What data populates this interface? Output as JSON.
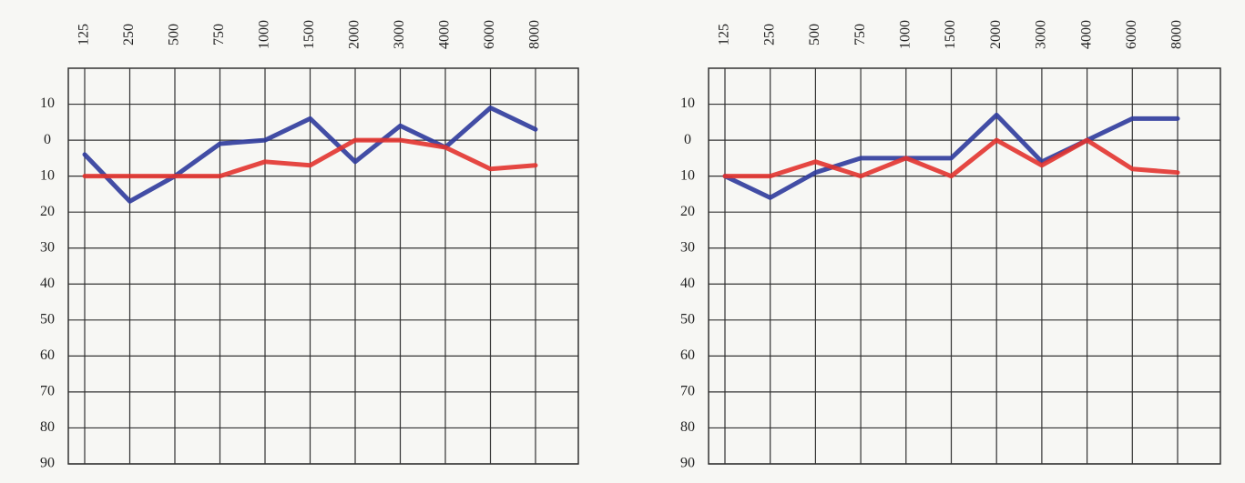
{
  "chart_data": [
    {
      "type": "line",
      "categories": [
        "125",
        "250",
        "500",
        "750",
        "1000",
        "1500",
        "2000",
        "3000",
        "4000",
        "6000",
        "8000"
      ],
      "series": [
        {
          "color": "#2d3a9c",
          "values": [
            4,
            17,
            10,
            1,
            0,
            -6,
            6,
            -4,
            2,
            -9,
            -3
          ]
        },
        {
          "color": "#e2332f",
          "values": [
            10,
            10,
            10,
            10,
            6,
            7,
            0,
            0,
            2,
            8,
            7
          ]
        }
      ],
      "ylim": [
        90,
        -20
      ],
      "yticks": [
        {
          "value": -10,
          "label": "10"
        },
        0,
        10,
        20,
        30,
        40,
        50,
        60,
        70,
        80,
        90
      ],
      "grid": true
    },
    {
      "type": "line",
      "categories": [
        "125",
        "250",
        "500",
        "750",
        "1000",
        "1500",
        "2000",
        "3000",
        "4000",
        "6000",
        "8000"
      ],
      "series": [
        {
          "color": "#2d3a9c",
          "values": [
            10,
            16,
            9,
            5,
            5,
            5,
            -7,
            6,
            0,
            -6,
            -6
          ]
        },
        {
          "color": "#e2332f",
          "values": [
            10,
            10,
            6,
            10,
            5,
            10,
            0,
            7,
            0,
            8,
            9
          ]
        }
      ],
      "ylim": [
        90,
        -20
      ],
      "yticks": [
        {
          "value": -10,
          "label": "10"
        },
        0,
        10,
        20,
        30,
        40,
        50,
        60,
        70,
        80,
        90
      ],
      "grid": true
    }
  ]
}
